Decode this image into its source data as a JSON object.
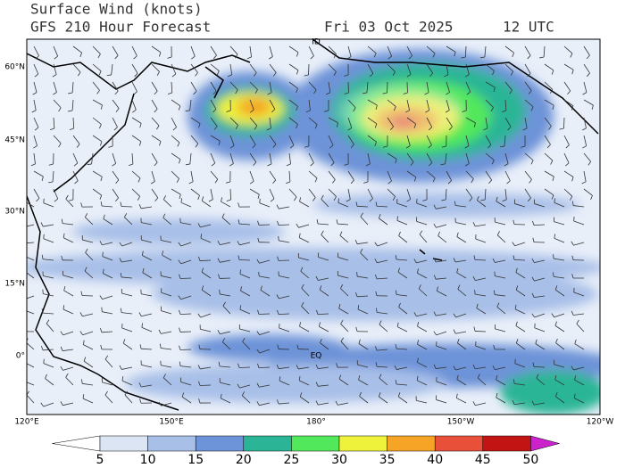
{
  "header": {
    "title": "Surface Wind (knots)",
    "subtitle": "GFS 210 Hour Forecast",
    "date": "Fri 03 Oct 2025",
    "time": "12 UTC"
  },
  "map": {
    "lat_labels": [
      "60°N",
      "45°N",
      "30°N",
      "15°N",
      "0°"
    ],
    "lon_labels": [
      "120°E",
      "150°E",
      "180°",
      "150°W",
      "120°W"
    ],
    "place_labels": [
      "ID",
      "EQ"
    ]
  },
  "colorbar": {
    "labels": [
      "5",
      "10",
      "15",
      "20",
      "25",
      "30",
      "35",
      "40",
      "45",
      "50"
    ],
    "colors": [
      "#ffffff",
      "#dbe5f4",
      "#a8bfe8",
      "#6d93d8",
      "#2bb596",
      "#52e85c",
      "#eef23a",
      "#f5a425",
      "#e8503a",
      "#c31414",
      "#cc22cc"
    ]
  }
}
